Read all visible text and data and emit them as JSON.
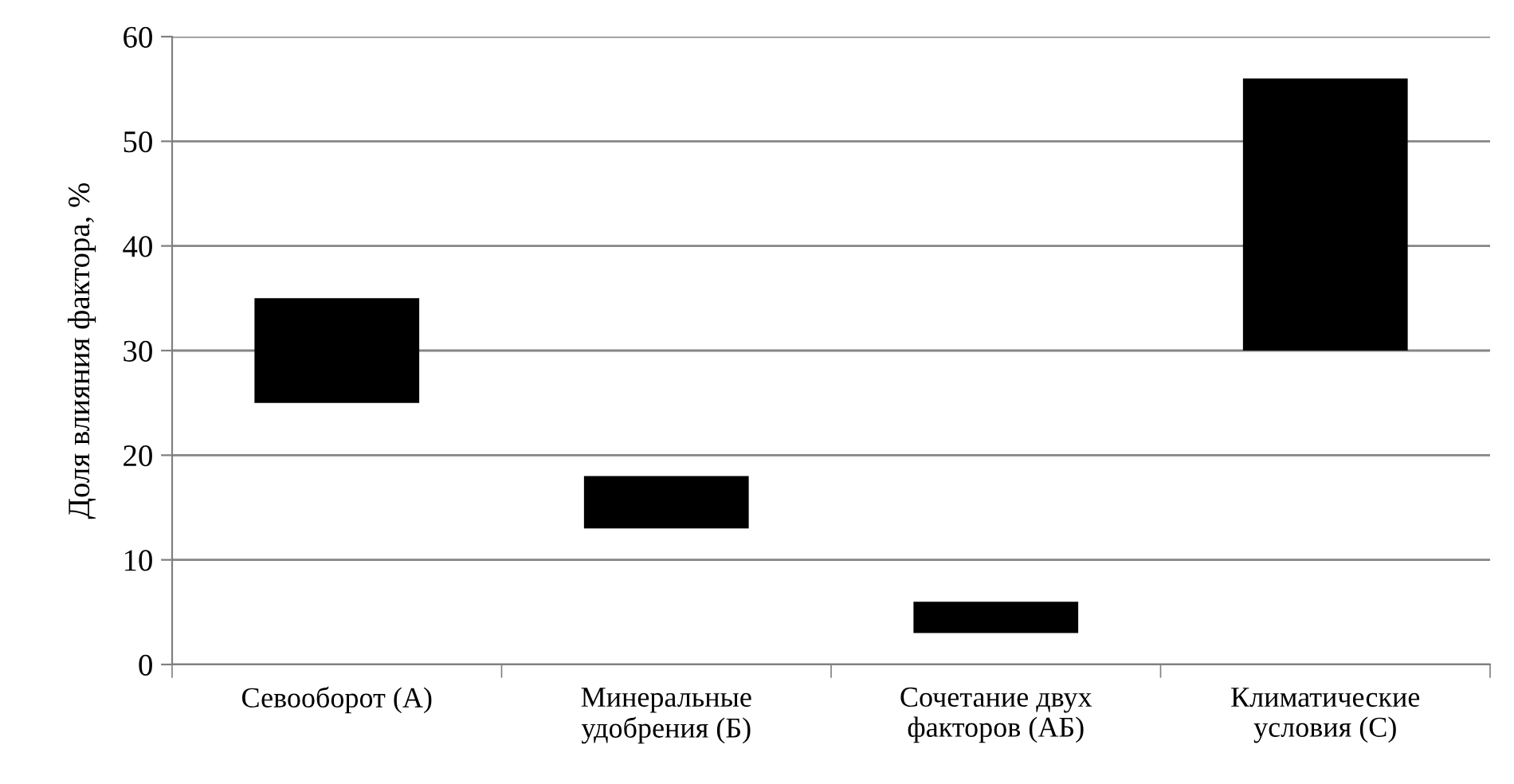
{
  "chart_data": {
    "type": "bar",
    "ylabel": "Доля влияния фактора, %",
    "categories": [
      "Севооборот (А)",
      "Минеральные\nудобрения (Б)",
      "Сочетание двух\nфакторов (АБ)",
      "Климатические\nусловия (С)"
    ],
    "values": [
      10,
      5,
      3,
      26
    ],
    "base": [
      25,
      13,
      3,
      30
    ],
    "color": "#000000",
    "ylim": [
      0,
      60
    ],
    "yticks": [
      0,
      10,
      20,
      30,
      40,
      50,
      60
    ],
    "grid": "y"
  }
}
